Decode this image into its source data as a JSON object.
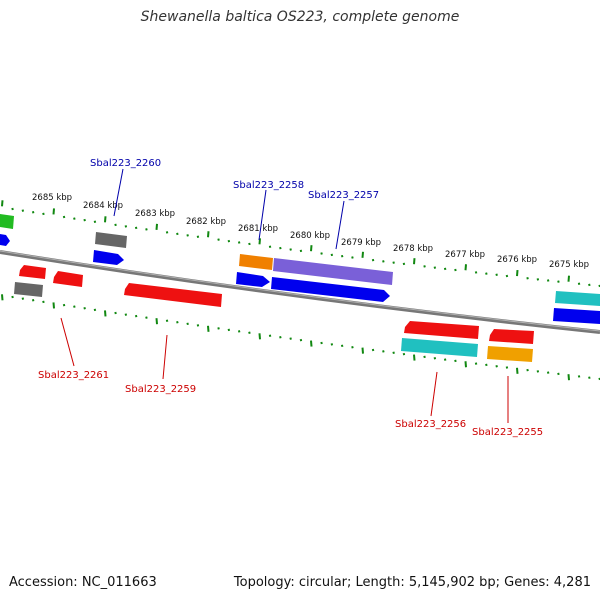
{
  "title": "Shewanella baltica OS223, complete genome",
  "footer": {
    "accession": "Accession: NC_011663",
    "meta": "Topology: circular; Length: 5,145,902 bp; Genes: 4,281"
  },
  "colors": {
    "backbone": "#8a8a8a",
    "ticks": "#118811",
    "label_top": "#0000aa",
    "label_bottom": "#cc0000"
  },
  "scale_labels": [
    "2685 kbp",
    "2684 kbp",
    "2683 kbp",
    "2682 kbp",
    "2681 kbp",
    "2680 kbp",
    "2679 kbp",
    "2678 kbp",
    "2677 kbp",
    "2676 kbp",
    "2675 kbp"
  ],
  "gene_labels_top": [
    "Sbal223_2260",
    "Sbal223_2258",
    "Sbal223_2257"
  ],
  "gene_labels_bottom": [
    "Sbal223_2261",
    "Sbal223_2259",
    "Sbal223_2256",
    "Sbal223_2255"
  ]
}
